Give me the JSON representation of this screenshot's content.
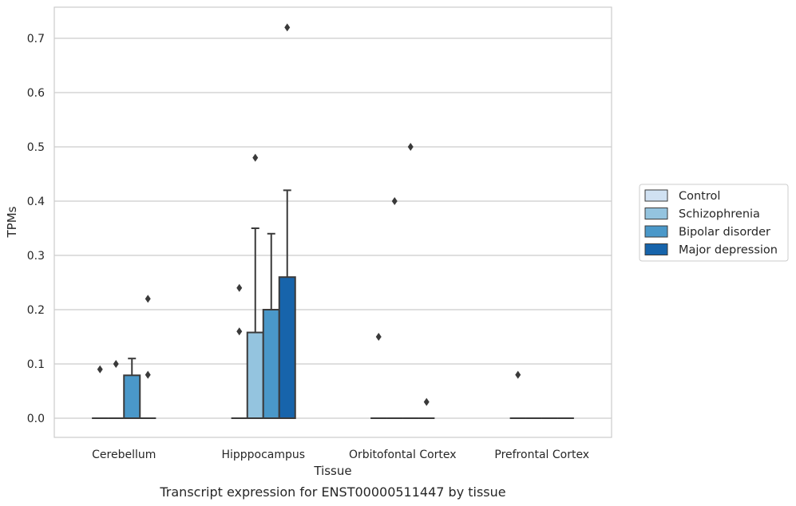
{
  "chart_data": {
    "type": "box",
    "title": "",
    "caption": "Transcript expression for ENST00000511447 by tissue",
    "xlabel": "Tissue",
    "ylabel": "TPMs",
    "ylim": [
      -0.035,
      0.76
    ],
    "yticks": [
      "0.0",
      "0.1",
      "0.2",
      "0.3",
      "0.4",
      "0.5",
      "0.6",
      "0.7"
    ],
    "ytick_values": [
      0,
      0.1,
      0.2,
      0.3,
      0.4,
      0.5,
      0.6,
      0.7
    ],
    "grid": "horizontal",
    "legend_position": "right",
    "categories": [
      "Cerebellum",
      "Hipppocampus",
      "Orbitofontal Cortex",
      "Prefrontal Cortex"
    ],
    "series": [
      {
        "name": "Control",
        "color": "#d0e1f2",
        "boxes": [
          {
            "q1": 0,
            "median": 0,
            "q3": 0,
            "whisker_low": 0,
            "whisker_high": 0,
            "outliers": [
              0.09
            ]
          },
          {
            "q1": 0,
            "median": 0,
            "q3": 0,
            "whisker_low": 0,
            "whisker_high": 0,
            "outliers": [
              0.16,
              0.24
            ]
          },
          {
            "q1": 0,
            "median": 0,
            "q3": 0,
            "whisker_low": 0,
            "whisker_high": 0,
            "outliers": [
              0.15
            ]
          },
          {
            "q1": 0,
            "median": 0,
            "q3": 0,
            "whisker_low": 0,
            "whisker_high": 0,
            "outliers": [
              0.08
            ]
          }
        ]
      },
      {
        "name": "Schizophrenia",
        "color": "#94c4df",
        "boxes": [
          {
            "q1": 0,
            "median": 0,
            "q3": 0,
            "whisker_low": 0,
            "whisker_high": 0,
            "outliers": [
              0.1
            ]
          },
          {
            "q1": 0,
            "median": 0,
            "q3": 0.158,
            "whisker_low": 0,
            "whisker_high": 0.35,
            "outliers": [
              0.48
            ]
          },
          {
            "q1": 0,
            "median": 0,
            "q3": 0,
            "whisker_low": 0,
            "whisker_high": 0,
            "outliers": [
              0.4
            ]
          },
          {
            "q1": 0,
            "median": 0,
            "q3": 0,
            "whisker_low": 0,
            "whisker_high": 0,
            "outliers": []
          }
        ]
      },
      {
        "name": "Bipolar disorder",
        "color": "#4a98c9",
        "boxes": [
          {
            "q1": 0,
            "median": 0,
            "q3": 0.079,
            "whisker_low": 0,
            "whisker_high": 0.11,
            "outliers": []
          },
          {
            "q1": 0,
            "median": 0,
            "q3": 0.2,
            "whisker_low": 0,
            "whisker_high": 0.34,
            "outliers": []
          },
          {
            "q1": 0,
            "median": 0,
            "q3": 0,
            "whisker_low": 0,
            "whisker_high": 0,
            "outliers": [
              0.5
            ]
          },
          {
            "q1": 0,
            "median": 0,
            "q3": 0,
            "whisker_low": 0,
            "whisker_high": 0,
            "outliers": []
          }
        ]
      },
      {
        "name": "Major depression",
        "color": "#1764ab",
        "boxes": [
          {
            "q1": 0,
            "median": 0,
            "q3": 0,
            "whisker_low": 0,
            "whisker_high": 0,
            "outliers": [
              0.08,
              0.22
            ]
          },
          {
            "q1": 0,
            "median": 0,
            "q3": 0.26,
            "whisker_low": 0,
            "whisker_high": 0.42,
            "outliers": [
              0.72
            ]
          },
          {
            "q1": 0,
            "median": 0,
            "q3": 0,
            "whisker_low": 0,
            "whisker_high": 0,
            "outliers": [
              0.03
            ]
          },
          {
            "q1": 0,
            "median": 0,
            "q3": 0,
            "whisker_low": 0,
            "whisker_high": 0,
            "outliers": []
          }
        ]
      }
    ]
  },
  "colors": {
    "grid": "#cccccc",
    "frame": "#cccccc",
    "line": "#3a3a3a"
  }
}
